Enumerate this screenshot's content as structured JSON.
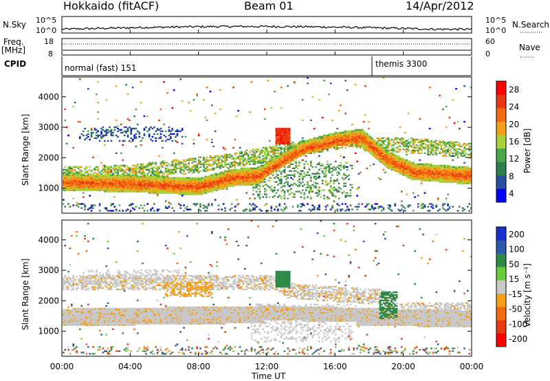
{
  "header": {
    "station": "Hokkaido (fitACF)",
    "beam": "Beam 01",
    "date": "14/Apr/2012"
  },
  "top_panels": {
    "nsky_label": "N.Sky",
    "nsky_ticks": [
      "10^5",
      "10^0"
    ],
    "nsearch_label": "N.Search",
    "nsearch_ticks": [
      "10^5",
      "10^0"
    ],
    "freq_label_1": "Freq.",
    "freq_label_2": "[MHz]",
    "freq_ticks": [
      "18",
      "8"
    ],
    "nave_label": "Nave",
    "nave_ticks": [
      "60",
      "0"
    ],
    "cpid_label": "CPID",
    "cpid_modes": [
      {
        "name": "normal (fast) 151",
        "start_hour": 0
      },
      {
        "name": "themis 3300",
        "start_hour": 18
      }
    ]
  },
  "colors": {
    "power_scale": [
      "#0000ff",
      "#2b4fa0",
      "#2e7f50",
      "#4aa64a",
      "#a6d23a",
      "#f5a01a",
      "#f26a12",
      "#e83a10",
      "#ff0000"
    ],
    "velocity_scale": [
      "#1a2fd0",
      "#2e5aa8",
      "#2e8a46",
      "#6acc3c",
      "#c8c8c8",
      "#f5a01a",
      "#f26a12",
      "#e83a10",
      "#ff0000"
    ],
    "ground_scatter": "#c8c8c8"
  },
  "chart_data": [
    {
      "type": "heatmap",
      "panel": "power",
      "ylabel": "Slant Range [km]",
      "ylim": [
        180,
        4650
      ],
      "yticks": [
        "1000",
        "2000",
        "3000",
        "4000"
      ],
      "xlim_hours": [
        0,
        24
      ],
      "colorbar_label": "Power [dB]",
      "colorbar_ticks": [
        "28",
        "24",
        "20",
        "16",
        "12",
        "8",
        "4"
      ],
      "colorbar_range": [
        0,
        32
      ],
      "features": [
        {
          "name": "main band lower edge",
          "time_h": [
            0,
            4,
            8,
            10,
            11.5,
            12.5,
            14,
            16,
            17.5,
            19,
            20.5,
            24
          ],
          "range_km": [
            1050,
            1000,
            900,
            1200,
            1250,
            1600,
            2100,
            2400,
            2500,
            1800,
            1400,
            1250
          ],
          "power_db": 24
        },
        {
          "name": "diffuse echo band",
          "time_h": [
            0,
            4,
            8,
            10,
            12,
            14,
            16,
            17,
            18,
            20,
            22,
            24
          ],
          "range_km": [
            1450,
            1500,
            1750,
            1900,
            2100,
            2300,
            2500,
            2600,
            2400,
            2400,
            2300,
            2200
          ],
          "power_db": 14
        },
        {
          "name": "high range patch",
          "time_h": [
            12.5,
            13.3
          ],
          "range_km": [
            2600,
            2900
          ],
          "power_db": 26
        }
      ]
    },
    {
      "type": "heatmap",
      "panel": "velocity",
      "ylabel": "Slant Range [km]",
      "ylim": [
        180,
        4650
      ],
      "yticks": [
        "1000",
        "2000",
        "3000",
        "4000"
      ],
      "xlim_hours": [
        0,
        24
      ],
      "colorbar_label": "Velocity [m s⁻¹]",
      "colorbar_ticks": [
        "200",
        "100",
        "50",
        "15",
        "-15",
        "-50",
        "-100",
        "-200"
      ],
      "colorbar_range": [
        -250,
        250
      ],
      "features": [
        {
          "name": "ground scatter band",
          "time_h": [
            0,
            12,
            24
          ],
          "range_km": [
            1300,
            1400,
            1250
          ],
          "velocity": 0
        },
        {
          "name": "towards radar",
          "time_h": [
            12.5,
            13.2,
            18.8,
            19.5
          ],
          "range_km": [
            2600,
            2300,
            2100,
            1700
          ],
          "velocity": 60
        },
        {
          "name": "away from radar",
          "time_h": [
            6,
            8.5,
            11.8,
            12.2
          ],
          "range_km": [
            2400,
            2500,
            1000,
            1200
          ],
          "velocity": -60
        }
      ]
    }
  ],
  "x_axis": {
    "ticks": [
      "00:00",
      "04:00",
      "08:00",
      "12:00",
      "16:00",
      "20:00",
      "00:00"
    ],
    "label": "Time UT"
  }
}
